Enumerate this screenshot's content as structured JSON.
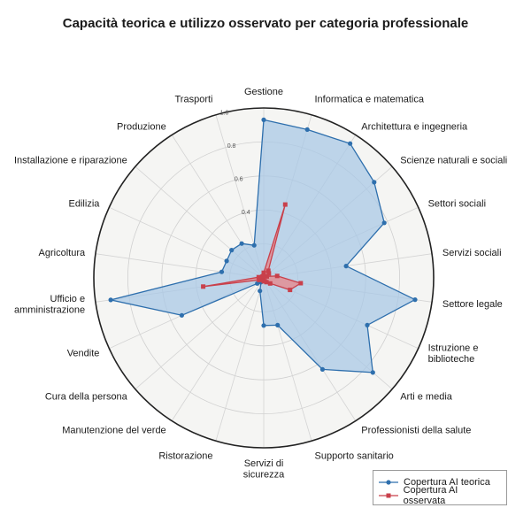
{
  "chart_data": {
    "type": "radar",
    "title": "Capacità teorica e utilizzo osservato per categoria professionale",
    "categories": [
      [
        "Gestione"
      ],
      [
        "Informatica e matematica"
      ],
      [
        "Architettura e ingegneria"
      ],
      [
        "Scienze naturali e sociali"
      ],
      [
        "Settori sociali"
      ],
      [
        "Servizi sociali"
      ],
      [
        "Settore legale"
      ],
      [
        "Istruzione e",
        "biblioteche"
      ],
      [
        "Arti e media"
      ],
      [
        "Professionisti della salute"
      ],
      [
        "Supporto sanitario"
      ],
      [
        "Servizi di",
        "sicurezza"
      ],
      [
        "Ristorazione"
      ],
      [
        "Manutenzione del verde"
      ],
      [
        "Cura della persona"
      ],
      [
        "Vendite"
      ],
      [
        "Ufficio e",
        "amministrazione"
      ],
      [
        "Agricoltura"
      ],
      [
        "Edilizia"
      ],
      [
        "Installazione e riparazione"
      ],
      [
        "Produzione"
      ],
      [
        "Trasporti"
      ]
    ],
    "rlim": [
      0,
      1.0
    ],
    "rticks": [
      0.4,
      0.6,
      0.8,
      1.0
    ],
    "rtick_labels": [
      "0.4",
      "0.6",
      "0.8",
      "1.0"
    ],
    "series": [
      {
        "name": "Copertura AI teorica",
        "color": "#2e6fad",
        "fill": "#a9c8e6",
        "marker": "circle",
        "values": [
          0.93,
          0.91,
          0.94,
          0.86,
          0.78,
          0.49,
          0.9,
          0.67,
          0.85,
          0.64,
          0.29,
          0.28,
          0.08,
          0.03,
          0.05,
          0.53,
          0.91,
          0.25,
          0.24,
          0.25,
          0.24,
          0.2
        ]
      },
      {
        "name": "Copertura AI osservata",
        "color": "#c9404b",
        "fill": "#e58a8f",
        "marker": "square",
        "values": [
          0.03,
          0.45,
          0.05,
          0.04,
          0.02,
          0.08,
          0.22,
          0.17,
          0.05,
          0.03,
          0.02,
          0.02,
          0.01,
          0.01,
          0.01,
          0.03,
          0.36,
          0.03,
          0.01,
          0.01,
          0.01,
          0.01
        ]
      }
    ],
    "grid": true,
    "legend_position": "bottom-right"
  }
}
